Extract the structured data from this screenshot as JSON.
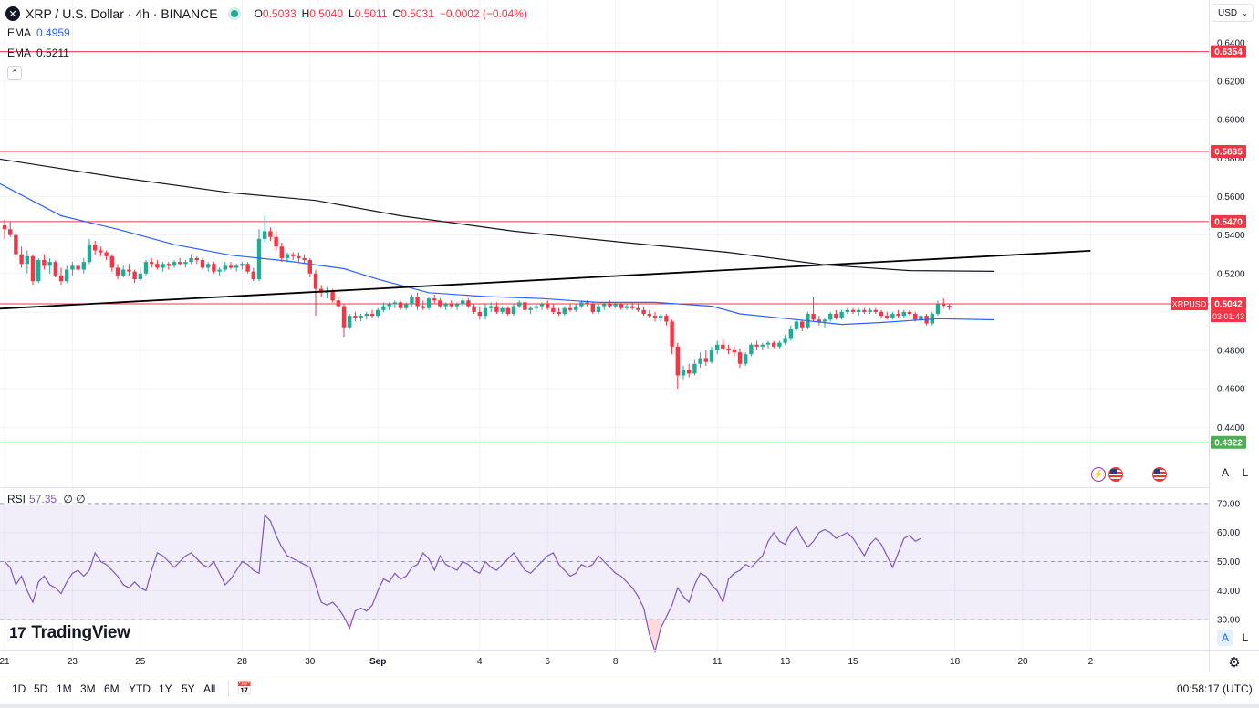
{
  "header": {
    "symbol": "XRP / U.S. Dollar · 4h · BINANCE",
    "o_label": "O",
    "o_value": "0.5033",
    "h_label": "H",
    "h_value": "0.5040",
    "l_label": "L",
    "l_value": "0.5011",
    "c_label": "C",
    "c_value": "0.5031",
    "change": "−0.0002 (−0.04%)"
  },
  "indicators": {
    "ema1_label": "EMA",
    "ema1_value": "0.4959",
    "ema2_label": "EMA",
    "ema2_value": "0.5211",
    "rsi_label": "RSI",
    "rsi_value": "57.35",
    "rsi_extra": "∅ ∅"
  },
  "currency": "USD",
  "brand": "TradingView",
  "toolbar": {
    "timeframes": [
      "1D",
      "5D",
      "1M",
      "3M",
      "6M",
      "YTD",
      "1Y",
      "5Y",
      "All"
    ],
    "clock": "00:58:17 (UTC)"
  },
  "scale_buttons": {
    "auto": "A",
    "log": "L"
  },
  "colors": {
    "up": "#22ab94",
    "down": "#f23645",
    "ema_fast": "#2962ff",
    "ema_slow": "#131722",
    "rsi": "#7e57c2",
    "support": "#4caf50",
    "resistance": "#f23645"
  },
  "chart_data": {
    "type": "candlestick",
    "timeframe": "4h",
    "price_axis": {
      "ylim": [
        0.42,
        0.65
      ],
      "ticks": [
        "0.6400",
        "0.6200",
        "0.6000",
        "0.5800",
        "0.5600",
        "0.5400",
        "0.5200",
        "0.5000",
        "0.4800",
        "0.4600",
        "0.4400"
      ]
    },
    "time_axis": {
      "labels": [
        "21",
        "23",
        "25",
        "28",
        "30",
        "Sep",
        "4",
        "6",
        "8",
        "11",
        "13",
        "15",
        "18",
        "20",
        "2"
      ],
      "label_bars": [
        0,
        12,
        24,
        42,
        54,
        66,
        84,
        96,
        108,
        126,
        138,
        150,
        168,
        180,
        192
      ]
    },
    "horizontal_levels": [
      {
        "value": 0.6354,
        "label": "0.6354",
        "color": "#f23645"
      },
      {
        "value": 0.5835,
        "label": "0.5835",
        "color": "#f23645"
      },
      {
        "value": 0.547,
        "label": "0.5470",
        "color": "#f23645"
      },
      {
        "value": 0.5042,
        "label": "0.5042",
        "color": "#f23645"
      },
      {
        "value": 0.4322,
        "label": "0.4322",
        "color": "#4caf50"
      }
    ],
    "last_price_label": {
      "symbol": "XRPUSD",
      "countdown": "03:01:43",
      "value": 0.5042
    },
    "trendline": {
      "from": {
        "bar": -2,
        "value": 0.5015
      },
      "to": {
        "bar": 192,
        "value": 0.5318
      }
    },
    "ema_fast": [
      [
        -2,
        0.5685
      ],
      [
        10,
        0.55
      ],
      [
        20,
        0.543
      ],
      [
        30,
        0.535
      ],
      [
        40,
        0.5295
      ],
      [
        50,
        0.5265
      ],
      [
        60,
        0.5225
      ],
      [
        66,
        0.517
      ],
      [
        75,
        0.51
      ],
      [
        85,
        0.508
      ],
      [
        95,
        0.507
      ],
      [
        105,
        0.505
      ],
      [
        115,
        0.505
      ],
      [
        125,
        0.503
      ],
      [
        130,
        0.499
      ],
      [
        140,
        0.496
      ],
      [
        148,
        0.4935
      ],
      [
        155,
        0.4945
      ],
      [
        165,
        0.4965
      ],
      [
        175,
        0.4959
      ]
    ],
    "ema_slow": [
      [
        -2,
        0.58
      ],
      [
        20,
        0.57
      ],
      [
        40,
        0.562
      ],
      [
        55,
        0.558
      ],
      [
        70,
        0.55
      ],
      [
        90,
        0.542
      ],
      [
        110,
        0.536
      ],
      [
        128,
        0.531
      ],
      [
        145,
        0.5245
      ],
      [
        160,
        0.5215
      ],
      [
        175,
        0.5211
      ]
    ],
    "candles": [
      [
        0.545,
        0.548,
        0.538,
        0.543
      ],
      [
        0.543,
        0.547,
        0.539,
        0.54
      ],
      [
        0.54,
        0.542,
        0.528,
        0.53
      ],
      [
        0.53,
        0.534,
        0.523,
        0.525
      ],
      [
        0.525,
        0.532,
        0.52,
        0.529
      ],
      [
        0.529,
        0.53,
        0.514,
        0.516
      ],
      [
        0.516,
        0.528,
        0.515,
        0.527
      ],
      [
        0.527,
        0.53,
        0.522,
        0.524
      ],
      [
        0.524,
        0.528,
        0.52,
        0.526
      ],
      [
        0.526,
        0.527,
        0.518,
        0.519
      ],
      [
        0.519,
        0.523,
        0.514,
        0.516
      ],
      [
        0.516,
        0.524,
        0.515,
        0.522
      ],
      [
        0.522,
        0.526,
        0.519,
        0.524
      ],
      [
        0.524,
        0.526,
        0.52,
        0.522
      ],
      [
        0.522,
        0.528,
        0.52,
        0.526
      ],
      [
        0.526,
        0.538,
        0.525,
        0.535
      ],
      [
        0.535,
        0.537,
        0.53,
        0.532
      ],
      [
        0.532,
        0.534,
        0.529,
        0.531
      ],
      [
        0.531,
        0.532,
        0.527,
        0.529
      ],
      [
        0.529,
        0.53,
        0.521,
        0.523
      ],
      [
        0.523,
        0.525,
        0.517,
        0.519
      ],
      [
        0.519,
        0.524,
        0.518,
        0.522
      ],
      [
        0.522,
        0.525,
        0.519,
        0.521
      ],
      [
        0.521,
        0.522,
        0.515,
        0.517
      ],
      [
        0.517,
        0.523,
        0.516,
        0.52
      ],
      [
        0.52,
        0.527,
        0.519,
        0.526
      ],
      [
        0.526,
        0.528,
        0.523,
        0.525
      ],
      [
        0.525,
        0.527,
        0.522,
        0.523
      ],
      [
        0.523,
        0.526,
        0.521,
        0.525
      ],
      [
        0.525,
        0.526,
        0.522,
        0.524
      ],
      [
        0.524,
        0.527,
        0.523,
        0.526
      ],
      [
        0.526,
        0.528,
        0.524,
        0.525
      ],
      [
        0.525,
        0.527,
        0.523,
        0.526
      ],
      [
        0.526,
        0.53,
        0.525,
        0.528
      ],
      [
        0.528,
        0.529,
        0.525,
        0.527
      ],
      [
        0.527,
        0.528,
        0.522,
        0.523
      ],
      [
        0.523,
        0.526,
        0.521,
        0.525
      ],
      [
        0.525,
        0.526,
        0.52,
        0.521
      ],
      [
        0.521,
        0.523,
        0.519,
        0.522
      ],
      [
        0.522,
        0.526,
        0.521,
        0.524
      ],
      [
        0.524,
        0.526,
        0.522,
        0.523
      ],
      [
        0.523,
        0.525,
        0.521,
        0.524
      ],
      [
        0.524,
        0.526,
        0.522,
        0.525
      ],
      [
        0.525,
        0.526,
        0.52,
        0.521
      ],
      [
        0.521,
        0.523,
        0.516,
        0.517
      ],
      [
        0.517,
        0.543,
        0.516,
        0.538
      ],
      [
        0.538,
        0.55,
        0.536,
        0.542
      ],
      [
        0.542,
        0.544,
        0.537,
        0.539
      ],
      [
        0.539,
        0.542,
        0.532,
        0.534
      ],
      [
        0.534,
        0.536,
        0.526,
        0.528
      ],
      [
        0.528,
        0.531,
        0.526,
        0.53
      ],
      [
        0.53,
        0.531,
        0.527,
        0.529
      ],
      [
        0.529,
        0.531,
        0.526,
        0.528
      ],
      [
        0.528,
        0.53,
        0.525,
        0.527
      ],
      [
        0.527,
        0.528,
        0.518,
        0.52
      ],
      [
        0.52,
        0.522,
        0.498,
        0.512
      ],
      [
        0.512,
        0.514,
        0.508,
        0.51
      ],
      [
        0.51,
        0.513,
        0.507,
        0.511
      ],
      [
        0.511,
        0.512,
        0.505,
        0.506
      ],
      [
        0.506,
        0.508,
        0.502,
        0.503
      ],
      [
        0.503,
        0.504,
        0.487,
        0.492
      ],
      [
        0.492,
        0.499,
        0.491,
        0.498
      ],
      [
        0.498,
        0.5,
        0.495,
        0.497
      ],
      [
        0.497,
        0.499,
        0.495,
        0.498
      ],
      [
        0.498,
        0.5,
        0.496,
        0.499
      ],
      [
        0.499,
        0.501,
        0.497,
        0.498
      ],
      [
        0.498,
        0.502,
        0.497,
        0.501
      ],
      [
        0.501,
        0.505,
        0.5,
        0.503
      ],
      [
        0.503,
        0.505,
        0.501,
        0.504
      ],
      [
        0.504,
        0.506,
        0.502,
        0.505
      ],
      [
        0.505,
        0.506,
        0.501,
        0.502
      ],
      [
        0.502,
        0.505,
        0.501,
        0.504
      ],
      [
        0.504,
        0.509,
        0.503,
        0.508
      ],
      [
        0.508,
        0.51,
        0.501,
        0.503
      ],
      [
        0.503,
        0.506,
        0.501,
        0.502
      ],
      [
        0.502,
        0.508,
        0.501,
        0.507
      ],
      [
        0.507,
        0.509,
        0.504,
        0.506
      ],
      [
        0.506,
        0.507,
        0.502,
        0.503
      ],
      [
        0.503,
        0.505,
        0.501,
        0.504
      ],
      [
        0.504,
        0.506,
        0.502,
        0.503
      ],
      [
        0.503,
        0.505,
        0.501,
        0.504
      ],
      [
        0.504,
        0.507,
        0.503,
        0.506
      ],
      [
        0.506,
        0.507,
        0.502,
        0.503
      ],
      [
        0.503,
        0.504,
        0.499,
        0.5
      ],
      [
        0.5,
        0.503,
        0.496,
        0.498
      ],
      [
        0.498,
        0.504,
        0.496,
        0.502
      ],
      [
        0.502,
        0.505,
        0.5,
        0.503
      ],
      [
        0.503,
        0.505,
        0.499,
        0.5
      ],
      [
        0.5,
        0.503,
        0.499,
        0.502
      ],
      [
        0.502,
        0.503,
        0.498,
        0.499
      ],
      [
        0.499,
        0.504,
        0.498,
        0.503
      ],
      [
        0.503,
        0.506,
        0.502,
        0.505
      ],
      [
        0.505,
        0.506,
        0.5,
        0.501
      ],
      [
        0.501,
        0.503,
        0.499,
        0.502
      ],
      [
        0.502,
        0.504,
        0.5,
        0.503
      ],
      [
        0.503,
        0.505,
        0.501,
        0.504
      ],
      [
        0.504,
        0.506,
        0.501,
        0.502
      ],
      [
        0.502,
        0.504,
        0.499,
        0.5
      ],
      [
        0.5,
        0.502,
        0.498,
        0.499
      ],
      [
        0.499,
        0.503,
        0.498,
        0.502
      ],
      [
        0.502,
        0.504,
        0.5,
        0.501
      ],
      [
        0.501,
        0.504,
        0.5,
        0.503
      ],
      [
        0.503,
        0.506,
        0.502,
        0.505
      ],
      [
        0.505,
        0.506,
        0.503,
        0.504
      ],
      [
        0.504,
        0.505,
        0.499,
        0.5
      ],
      [
        0.5,
        0.504,
        0.499,
        0.503
      ],
      [
        0.503,
        0.505,
        0.501,
        0.504
      ],
      [
        0.504,
        0.506,
        0.502,
        0.503
      ],
      [
        0.503,
        0.505,
        0.502,
        0.504
      ],
      [
        0.504,
        0.505,
        0.501,
        0.502
      ],
      [
        0.502,
        0.504,
        0.501,
        0.503
      ],
      [
        0.503,
        0.505,
        0.501,
        0.502
      ],
      [
        0.502,
        0.504,
        0.5,
        0.501
      ],
      [
        0.501,
        0.503,
        0.498,
        0.499
      ],
      [
        0.499,
        0.501,
        0.497,
        0.498
      ],
      [
        0.498,
        0.5,
        0.495,
        0.497
      ],
      [
        0.497,
        0.499,
        0.495,
        0.498
      ],
      [
        0.498,
        0.499,
        0.493,
        0.495
      ],
      [
        0.495,
        0.496,
        0.478,
        0.482
      ],
      [
        0.482,
        0.484,
        0.46,
        0.467
      ],
      [
        0.467,
        0.472,
        0.465,
        0.47
      ],
      [
        0.47,
        0.473,
        0.466,
        0.468
      ],
      [
        0.468,
        0.475,
        0.467,
        0.473
      ],
      [
        0.473,
        0.479,
        0.471,
        0.476
      ],
      [
        0.476,
        0.48,
        0.472,
        0.474
      ],
      [
        0.474,
        0.482,
        0.473,
        0.48
      ],
      [
        0.48,
        0.485,
        0.478,
        0.483
      ],
      [
        0.483,
        0.486,
        0.48,
        0.481
      ],
      [
        0.481,
        0.483,
        0.478,
        0.48
      ],
      [
        0.48,
        0.482,
        0.477,
        0.479
      ],
      [
        0.479,
        0.481,
        0.471,
        0.473
      ],
      [
        0.473,
        0.479,
        0.472,
        0.478
      ],
      [
        0.478,
        0.484,
        0.477,
        0.483
      ],
      [
        0.483,
        0.485,
        0.48,
        0.482
      ],
      [
        0.482,
        0.484,
        0.48,
        0.483
      ],
      [
        0.483,
        0.485,
        0.481,
        0.484
      ],
      [
        0.484,
        0.485,
        0.481,
        0.482
      ],
      [
        0.482,
        0.485,
        0.481,
        0.484
      ],
      [
        0.484,
        0.488,
        0.483,
        0.486
      ],
      [
        0.486,
        0.493,
        0.485,
        0.491
      ],
      [
        0.491,
        0.496,
        0.49,
        0.495
      ],
      [
        0.495,
        0.496,
        0.49,
        0.492
      ],
      [
        0.492,
        0.5,
        0.491,
        0.499
      ],
      [
        0.499,
        0.508,
        0.495,
        0.496
      ],
      [
        0.496,
        0.498,
        0.493,
        0.495
      ],
      [
        0.495,
        0.497,
        0.492,
        0.496
      ],
      [
        0.496,
        0.5,
        0.495,
        0.499
      ],
      [
        0.499,
        0.501,
        0.496,
        0.497
      ],
      [
        0.497,
        0.501,
        0.496,
        0.5
      ],
      [
        0.5,
        0.502,
        0.499,
        0.501
      ],
      [
        0.501,
        0.502,
        0.499,
        0.5
      ],
      [
        0.5,
        0.502,
        0.498,
        0.501
      ],
      [
        0.501,
        0.502,
        0.499,
        0.5
      ],
      [
        0.5,
        0.502,
        0.499,
        0.501
      ],
      [
        0.501,
        0.502,
        0.499,
        0.5
      ],
      [
        0.5,
        0.501,
        0.497,
        0.498
      ],
      [
        0.498,
        0.5,
        0.496,
        0.497
      ],
      [
        0.497,
        0.5,
        0.496,
        0.499
      ],
      [
        0.499,
        0.501,
        0.497,
        0.498
      ],
      [
        0.498,
        0.501,
        0.497,
        0.5
      ],
      [
        0.5,
        0.501,
        0.498,
        0.499
      ],
      [
        0.499,
        0.5,
        0.495,
        0.496
      ],
      [
        0.496,
        0.499,
        0.494,
        0.498
      ],
      [
        0.498,
        0.499,
        0.493,
        0.494
      ],
      [
        0.494,
        0.5,
        0.493,
        0.499
      ],
      [
        0.499,
        0.506,
        0.498,
        0.504
      ],
      [
        0.504,
        0.507,
        0.502,
        0.5033
      ],
      [
        0.5033,
        0.504,
        0.5011,
        0.5031
      ]
    ],
    "rsi": {
      "levels": [
        70,
        50,
        30
      ],
      "ticks": [
        "70.00",
        "60.00",
        "50.00",
        "40.00",
        "30.00"
      ],
      "ylim": [
        20,
        75
      ],
      "values": [
        50,
        48,
        42,
        45,
        40,
        36,
        43,
        45,
        42,
        41,
        39,
        43,
        46,
        47,
        45,
        47,
        53,
        50,
        49,
        47,
        45,
        42,
        41,
        43,
        41,
        40,
        47,
        53,
        52,
        50,
        48,
        50,
        52,
        53,
        51,
        49,
        48,
        50,
        46,
        42,
        44,
        47,
        50,
        49,
        47,
        46,
        66,
        64,
        59,
        55,
        52,
        51,
        50,
        49,
        48,
        42,
        36,
        35,
        36,
        34,
        31,
        27,
        33,
        34,
        33,
        35,
        40,
        44,
        43,
        46,
        44,
        45,
        48,
        49,
        53,
        51,
        47,
        52,
        49,
        48,
        47,
        50,
        49,
        47,
        46,
        50,
        48,
        47,
        49,
        51,
        53,
        50,
        47,
        46,
        48,
        50,
        52,
        53,
        49,
        47,
        45,
        46,
        49,
        48,
        49,
        52,
        50,
        48,
        46,
        45,
        43,
        41,
        38,
        34,
        25,
        19,
        27,
        31,
        35,
        41,
        38,
        36,
        42,
        46,
        45,
        42,
        40,
        36,
        44,
        46,
        47,
        49,
        48,
        50,
        52,
        57,
        60,
        57,
        56,
        60,
        62,
        58,
        55,
        57,
        60,
        61,
        60,
        58,
        59,
        60,
        58,
        55,
        52,
        56,
        58,
        56,
        52,
        48,
        53,
        58,
        59,
        57,
        58
      ]
    },
    "xlabel": "",
    "ylabel": ""
  }
}
